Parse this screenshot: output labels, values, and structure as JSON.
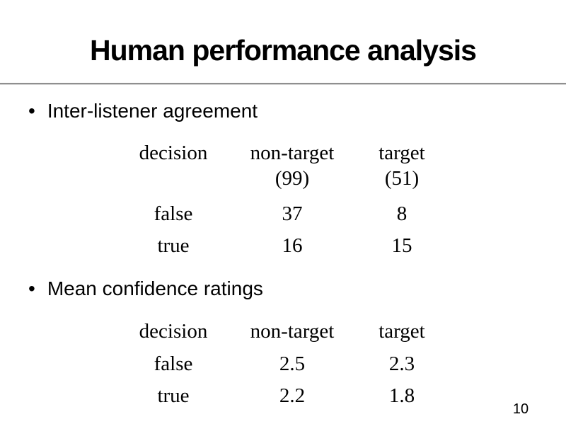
{
  "slide": {
    "title": "Human performance analysis",
    "bullet_glyph": "•",
    "bullets": [
      "Inter-listener agreement",
      "Mean confidence ratings"
    ],
    "page_number": "10"
  },
  "agreement_table": {
    "header": {
      "decision": "decision",
      "non_target_line1": "non-target",
      "non_target_line2": "(99)",
      "target_line1": "target",
      "target_line2": "(51)"
    },
    "rows": [
      {
        "decision": "false",
        "non_target": "37",
        "target": "8"
      },
      {
        "decision": "true",
        "non_target": "16",
        "target": "15"
      }
    ]
  },
  "confidence_table": {
    "header": {
      "decision": "decision",
      "non_target": "non-target",
      "target": "target"
    },
    "rows": [
      {
        "decision": "false",
        "non_target": "2.5",
        "target": "2.3"
      },
      {
        "decision": "true",
        "non_target": "2.2",
        "target": "1.8"
      }
    ]
  },
  "colors": {
    "background": "#ffffff",
    "text": "#000000",
    "divider": "#8f8f8f"
  }
}
